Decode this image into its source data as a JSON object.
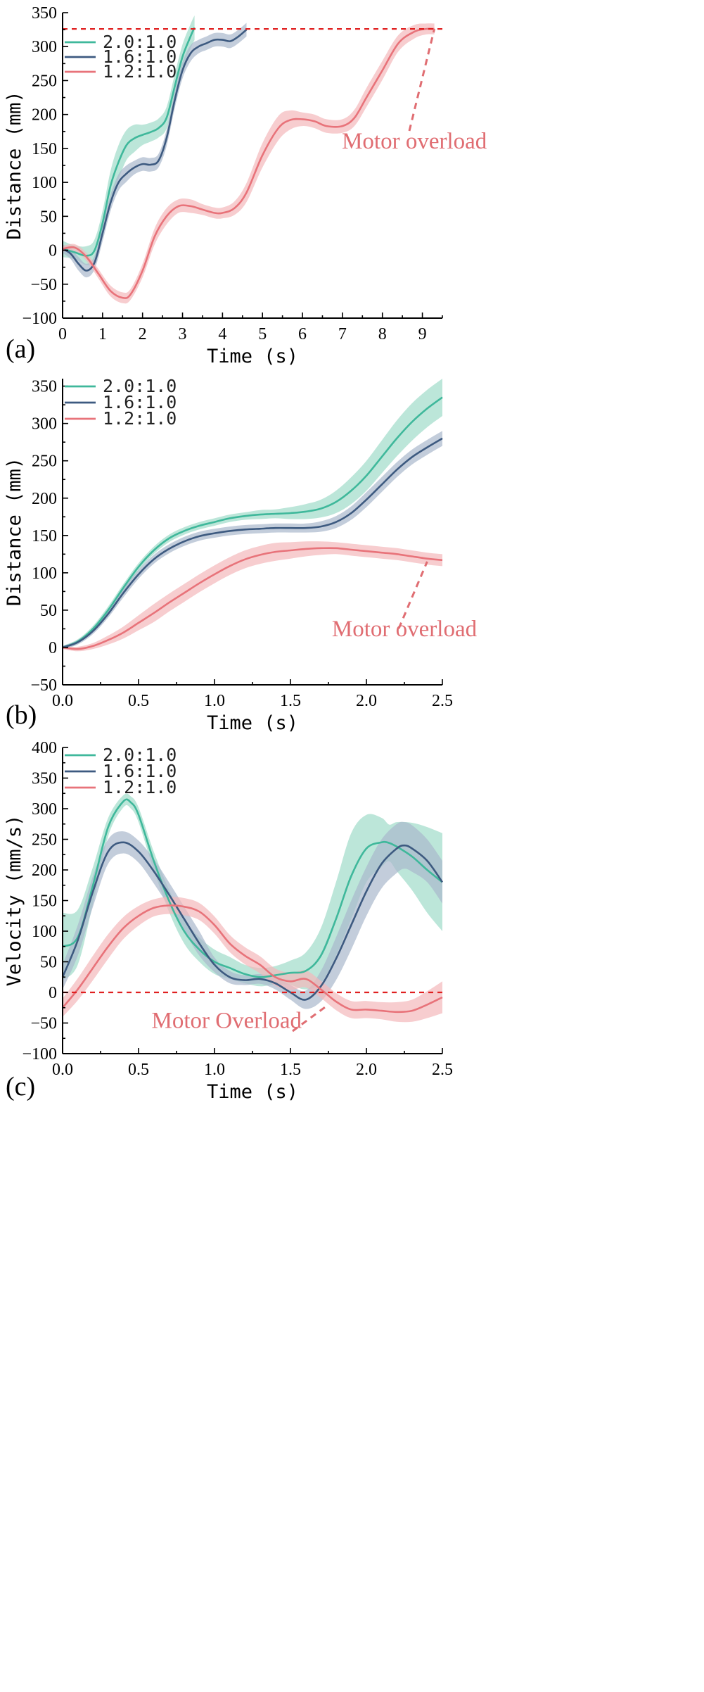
{
  "colors": {
    "teal": "#3fb89b",
    "navy": "#3d5a80",
    "coral": "#e8737a",
    "teal_band": "#9fdcc9",
    "navy_band": "#a9b8cc",
    "coral_band": "#f4b8bb",
    "refline": "#e02020",
    "annotation": "#e06d72"
  },
  "chart_data": [
    {
      "type": "line",
      "panel_label": "(a)",
      "xlabel": "Time (s)",
      "ylabel": "Distance (mm)",
      "xlim": [
        0,
        9.5
      ],
      "ylim": [
        -100,
        350
      ],
      "xticks": [
        "0",
        "1",
        "2",
        "3",
        "4",
        "5",
        "6",
        "7",
        "8",
        "9"
      ],
      "yticks": [
        "-100",
        "-50",
        "0",
        "50",
        "100",
        "150",
        "200",
        "250",
        "300",
        "350"
      ],
      "legend": [
        "2.0:1.0",
        "1.6:1.0",
        "1.2:1.0"
      ],
      "legend_position": "top-left",
      "reference_line": {
        "y": 326,
        "style": "dashed"
      },
      "annotation": {
        "text": "Motor overload",
        "x": 8.8,
        "y": 150,
        "arrow_to": [
          9.3,
          326
        ]
      },
      "series": [
        {
          "name": "2.0:1.0",
          "color": "teal",
          "x": [
            0,
            0.3,
            0.6,
            0.8,
            1.0,
            1.2,
            1.4,
            1.6,
            1.8,
            2.0,
            2.2,
            2.4,
            2.6,
            2.8,
            3.0,
            3.2,
            3.3
          ],
          "y": [
            2,
            -3,
            -8,
            0,
            40,
            95,
            130,
            155,
            165,
            170,
            174,
            180,
            195,
            240,
            285,
            315,
            328
          ],
          "band": [
            12,
            10,
            14,
            16,
            18,
            22,
            25,
            22,
            20,
            15,
            14,
            14,
            16,
            18,
            18,
            18,
            18
          ]
        },
        {
          "name": "1.6:1.0",
          "color": "navy",
          "x": [
            0,
            0.2,
            0.4,
            0.6,
            0.8,
            1.0,
            1.2,
            1.4,
            1.6,
            1.8,
            2.0,
            2.2,
            2.4,
            2.6,
            2.8,
            3.0,
            3.2,
            3.4,
            3.6,
            3.8,
            4.0,
            4.2,
            4.4,
            4.6
          ],
          "y": [
            2,
            -5,
            -20,
            -30,
            -18,
            25,
            70,
            100,
            113,
            122,
            127,
            126,
            132,
            165,
            220,
            265,
            290,
            300,
            305,
            310,
            310,
            308,
            315,
            325
          ],
          "band": [
            6,
            8,
            10,
            10,
            10,
            12,
            12,
            12,
            12,
            10,
            10,
            10,
            10,
            12,
            12,
            12,
            12,
            10,
            10,
            10,
            10,
            10,
            10,
            10
          ]
        },
        {
          "name": "1.2:1.0",
          "color": "coral",
          "x": [
            0,
            0.3,
            0.6,
            0.9,
            1.2,
            1.5,
            1.7,
            2.0,
            2.3,
            2.6,
            2.9,
            3.2,
            3.5,
            3.8,
            4.0,
            4.3,
            4.6,
            5.0,
            5.4,
            5.7,
            6.0,
            6.3,
            6.6,
            7.0,
            7.3,
            7.6,
            8.0,
            8.4,
            8.8,
            9.1,
            9.3
          ],
          "y": [
            2,
            4,
            -10,
            -35,
            -60,
            -70,
            -65,
            -30,
            20,
            50,
            65,
            65,
            60,
            55,
            55,
            62,
            85,
            140,
            180,
            192,
            193,
            190,
            183,
            183,
            195,
            225,
            265,
            305,
            322,
            326,
            326
          ],
          "band": [
            4,
            5,
            6,
            7,
            8,
            8,
            8,
            10,
            12,
            12,
            10,
            10,
            8,
            8,
            8,
            10,
            14,
            18,
            18,
            14,
            10,
            10,
            10,
            10,
            12,
            14,
            14,
            12,
            10,
            8,
            8
          ]
        }
      ]
    },
    {
      "type": "line",
      "panel_label": "(b)",
      "xlabel": "Time (s)",
      "ylabel": "Distance (mm)",
      "xlim": [
        0,
        2.5
      ],
      "ylim": [
        -50,
        360
      ],
      "xticks": [
        "0.0",
        "0.5",
        "1.0",
        "1.5",
        "2.0",
        "2.5"
      ],
      "yticks": [
        "-50",
        "0",
        "50",
        "100",
        "150",
        "200",
        "250",
        "300",
        "350"
      ],
      "legend": [
        "2.0:1.0",
        "1.6:1.0",
        "1.2:1.0"
      ],
      "legend_position": "top-left",
      "annotation": {
        "text": "Motor overload",
        "x": 2.25,
        "y": 15,
        "arrow_to": [
          2.4,
          115
        ]
      },
      "series": [
        {
          "name": "2.0:1.0",
          "color": "teal",
          "x": [
            0,
            0.1,
            0.2,
            0.3,
            0.4,
            0.5,
            0.6,
            0.7,
            0.8,
            0.9,
            1.0,
            1.1,
            1.2,
            1.3,
            1.4,
            1.5,
            1.6,
            1.7,
            1.8,
            1.9,
            2.0,
            2.1,
            2.2,
            2.3,
            2.4,
            2.5
          ],
          "y": [
            0,
            8,
            25,
            50,
            80,
            108,
            130,
            146,
            156,
            163,
            168,
            173,
            176,
            178,
            179,
            180,
            182,
            186,
            195,
            210,
            230,
            255,
            280,
            302,
            320,
            335
          ],
          "band": [
            2,
            3,
            4,
            5,
            5,
            5,
            5,
            5,
            5,
            5,
            5,
            5,
            5,
            6,
            6,
            8,
            10,
            12,
            15,
            18,
            20,
            22,
            24,
            25,
            25,
            25
          ]
        },
        {
          "name": "1.6:1.0",
          "color": "navy",
          "x": [
            0,
            0.1,
            0.2,
            0.3,
            0.4,
            0.5,
            0.6,
            0.7,
            0.8,
            0.9,
            1.0,
            1.1,
            1.2,
            1.3,
            1.4,
            1.5,
            1.6,
            1.7,
            1.8,
            1.9,
            2.0,
            2.1,
            2.2,
            2.3,
            2.4,
            2.5
          ],
          "y": [
            0,
            7,
            22,
            45,
            73,
            98,
            118,
            132,
            142,
            149,
            153,
            156,
            158,
            159,
            160,
            160,
            160,
            162,
            168,
            180,
            198,
            218,
            238,
            255,
            268,
            280
          ],
          "band": [
            2,
            3,
            4,
            5,
            6,
            6,
            6,
            6,
            6,
            6,
            6,
            6,
            6,
            6,
            6,
            6,
            6,
            7,
            8,
            9,
            10,
            10,
            10,
            10,
            10,
            10
          ]
        },
        {
          "name": "1.2:1.0",
          "color": "coral",
          "x": [
            0,
            0.1,
            0.2,
            0.3,
            0.4,
            0.5,
            0.6,
            0.7,
            0.8,
            0.9,
            1.0,
            1.1,
            1.2,
            1.3,
            1.4,
            1.5,
            1.6,
            1.7,
            1.8,
            1.9,
            2.0,
            2.1,
            2.2,
            2.3,
            2.4,
            2.5
          ],
          "y": [
            0,
            -2,
            2,
            10,
            20,
            33,
            46,
            60,
            73,
            86,
            98,
            109,
            118,
            124,
            128,
            130,
            132,
            133,
            133,
            131,
            129,
            127,
            125,
            122,
            119,
            117
          ],
          "band": [
            2,
            3,
            4,
            6,
            8,
            10,
            12,
            12,
            12,
            12,
            12,
            12,
            12,
            12,
            12,
            11,
            10,
            9,
            8,
            8,
            8,
            8,
            8,
            8,
            8,
            8
          ]
        }
      ]
    },
    {
      "type": "line",
      "panel_label": "(c)",
      "xlabel": "Time (s)",
      "ylabel": "Velocity (mm/s)",
      "xlim": [
        0,
        2.5
      ],
      "ylim": [
        -100,
        400
      ],
      "xticks": [
        "0.0",
        "0.5",
        "1.0",
        "1.5",
        "2.0",
        "2.5"
      ],
      "yticks": [
        "-100",
        "-50",
        "0",
        "50",
        "100",
        "150",
        "200",
        "250",
        "300",
        "350",
        "400"
      ],
      "legend": [
        "2.0:1.0",
        "1.6:1.0",
        "1.2:1.0"
      ],
      "legend_position": "top-left",
      "reference_line": {
        "y": 0,
        "style": "dashed"
      },
      "annotation": {
        "text": "Motor Overload",
        "x": 1.08,
        "y": -58,
        "arrow_to": [
          1.75,
          -20
        ]
      },
      "series": [
        {
          "name": "2.0:1.0",
          "color": "teal",
          "x": [
            0,
            0.1,
            0.2,
            0.3,
            0.4,
            0.45,
            0.5,
            0.6,
            0.7,
            0.8,
            0.9,
            1.0,
            1.1,
            1.2,
            1.3,
            1.4,
            1.5,
            1.6,
            1.7,
            1.8,
            1.9,
            2.0,
            2.1,
            2.15,
            2.2,
            2.3,
            2.4,
            2.5
          ],
          "y": [
            75,
            90,
            175,
            270,
            312,
            310,
            290,
            215,
            150,
            100,
            70,
            50,
            40,
            30,
            25,
            28,
            32,
            35,
            60,
            120,
            190,
            235,
            245,
            244,
            238,
            222,
            200,
            180
          ],
          "band": [
            55,
            45,
            30,
            15,
            10,
            10,
            12,
            15,
            18,
            20,
            20,
            20,
            18,
            15,
            15,
            15,
            20,
            30,
            45,
            60,
            70,
            55,
            40,
            30,
            40,
            55,
            70,
            80
          ]
        },
        {
          "name": "1.6:1.0",
          "color": "navy",
          "x": [
            0,
            0.1,
            0.2,
            0.3,
            0.4,
            0.5,
            0.6,
            0.7,
            0.8,
            0.9,
            1.0,
            1.1,
            1.2,
            1.3,
            1.4,
            1.5,
            1.6,
            1.7,
            1.8,
            1.9,
            2.0,
            2.1,
            2.2,
            2.25,
            2.3,
            2.4,
            2.5
          ],
          "y": [
            25,
            85,
            165,
            230,
            245,
            230,
            198,
            160,
            120,
            80,
            45,
            25,
            20,
            22,
            15,
            0,
            -12,
            10,
            55,
            110,
            165,
            210,
            235,
            240,
            235,
            215,
            180
          ],
          "band": [
            20,
            25,
            25,
            20,
            18,
            18,
            20,
            20,
            20,
            20,
            12,
            10,
            8,
            8,
            10,
            12,
            15,
            25,
            35,
            40,
            40,
            40,
            40,
            38,
            38,
            35,
            35
          ]
        },
        {
          "name": "1.2:1.0",
          "color": "coral",
          "x": [
            0,
            0.1,
            0.2,
            0.3,
            0.4,
            0.5,
            0.6,
            0.7,
            0.8,
            0.9,
            1.0,
            1.1,
            1.2,
            1.3,
            1.4,
            1.5,
            1.6,
            1.7,
            1.8,
            1.9,
            2.0,
            2.1,
            2.2,
            2.3,
            2.4,
            2.5
          ],
          "y": [
            -25,
            5,
            40,
            75,
            105,
            125,
            138,
            142,
            140,
            132,
            110,
            80,
            60,
            45,
            25,
            18,
            22,
            5,
            -15,
            -28,
            -28,
            -30,
            -32,
            -30,
            -20,
            -8
          ],
          "band": [
            15,
            18,
            20,
            20,
            18,
            16,
            14,
            14,
            14,
            14,
            14,
            14,
            14,
            14,
            14,
            14,
            14,
            14,
            14,
            14,
            14,
            14,
            16,
            18,
            22,
            26
          ]
        }
      ]
    }
  ]
}
